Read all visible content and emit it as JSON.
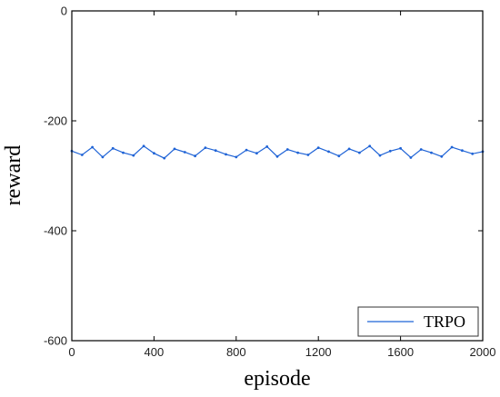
{
  "chart_data": {
    "type": "line",
    "title": "",
    "xlabel": "episode",
    "ylabel": "reward",
    "xlim": [
      0,
      2000
    ],
    "ylim": [
      -600,
      0
    ],
    "xticks": [
      0,
      400,
      800,
      1200,
      1600,
      2000
    ],
    "yticks": [
      0,
      -200,
      -400,
      -600
    ],
    "xtick_labels": [
      "0",
      "400",
      "800",
      "1200",
      "1600",
      "2000"
    ],
    "ytick_labels": [
      "0",
      "-200",
      "-400",
      "-600"
    ],
    "grid": false,
    "legend_position": "bottom-right",
    "series": [
      {
        "name": "TRPO",
        "color": "#1f63d6",
        "x": [
          0,
          50,
          100,
          150,
          200,
          250,
          300,
          350,
          400,
          450,
          500,
          550,
          600,
          650,
          700,
          750,
          800,
          850,
          900,
          950,
          1000,
          1050,
          1100,
          1150,
          1200,
          1250,
          1300,
          1350,
          1400,
          1450,
          1500,
          1550,
          1600,
          1650,
          1700,
          1750,
          1800,
          1850,
          1900,
          1950,
          2000
        ],
        "y": [
          -255,
          -262,
          -248,
          -266,
          -250,
          -258,
          -263,
          -246,
          -259,
          -268,
          -251,
          -257,
          -264,
          -249,
          -254,
          -261,
          -266,
          -253,
          -259,
          -247,
          -265,
          -252,
          -258,
          -262,
          -249,
          -256,
          -264,
          -251,
          -258,
          -246,
          -263,
          -255,
          -250,
          -267,
          -252,
          -258,
          -265,
          -248,
          -254,
          -260,
          -256
        ]
      }
    ]
  }
}
